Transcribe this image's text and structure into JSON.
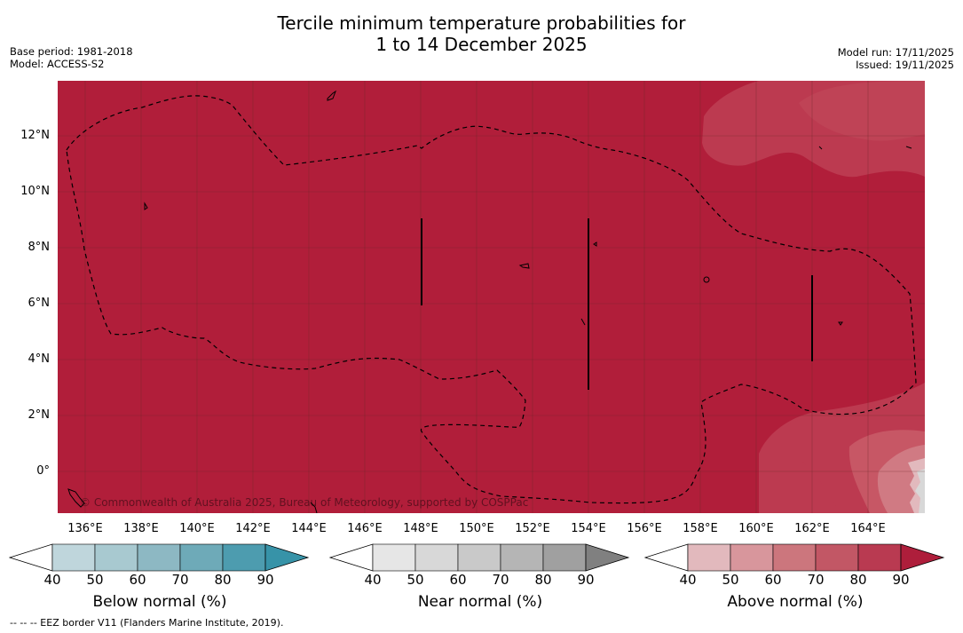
{
  "header": {
    "title_line1": "Tercile minimum temperature probabilities for",
    "title_line2": "1 to 14 December 2025",
    "base_period": "Base period: 1981-2018",
    "model": "Model: ACCESS-S2",
    "model_run": "Model run: 17/11/2025",
    "issued": "Issued: 19/11/2025"
  },
  "map": {
    "lat_range": [
      -1.5,
      14
    ],
    "lon_range": [
      135,
      166
    ],
    "lat_ticks": [
      {
        "value": 12,
        "label": "12°N"
      },
      {
        "value": 10,
        "label": "10°N"
      },
      {
        "value": 8,
        "label": "8°N"
      },
      {
        "value": 6,
        "label": "6°N"
      },
      {
        "value": 4,
        "label": "4°N"
      },
      {
        "value": 2,
        "label": "2°N"
      },
      {
        "value": 0,
        "label": "0°"
      }
    ],
    "lon_ticks": [
      {
        "value": 136,
        "label": "136°E"
      },
      {
        "value": 138,
        "label": "138°E"
      },
      {
        "value": 140,
        "label": "140°E"
      },
      {
        "value": 142,
        "label": "142°E"
      },
      {
        "value": 144,
        "label": "144°E"
      },
      {
        "value": 146,
        "label": "146°E"
      },
      {
        "value": 148,
        "label": "148°E"
      },
      {
        "value": 150,
        "label": "150°E"
      },
      {
        "value": 152,
        "label": "152°E"
      },
      {
        "value": 154,
        "label": "154°E"
      },
      {
        "value": 156,
        "label": "156°E"
      },
      {
        "value": 158,
        "label": "158°E"
      },
      {
        "value": 160,
        "label": "160°E"
      },
      {
        "value": 162,
        "label": "162°E"
      },
      {
        "value": 164,
        "label": "164°E"
      }
    ],
    "copyright": "© Commonwealth of Australia 2025, Bureau of Meteorology, supported by COSPPac",
    "colors": {
      "above_90": "#b11e3a",
      "above_80": "#bc3a50",
      "above_70": "#c75765",
      "above_60": "#d07a83",
      "above_50": "#db9ea4",
      "above_40": "#e2b9bd",
      "near": "#d8d8d8",
      "grid": "#6a2a2a"
    }
  },
  "colorbars": {
    "ticks": [
      "40",
      "50",
      "60",
      "70",
      "80",
      "90"
    ],
    "below": {
      "label": "Below normal (%)",
      "colors": [
        "#bfd6dc",
        "#a8c9d0",
        "#8db8c3",
        "#6eaab8",
        "#4d9caf",
        "#3793a8"
      ]
    },
    "near": {
      "label": "Near normal (%)",
      "colors": [
        "#e6e6e6",
        "#d8d8d8",
        "#c9c9c9",
        "#b5b5b5",
        "#a0a0a0",
        "#808080"
      ]
    },
    "above": {
      "label": "Above normal (%)",
      "colors": [
        "#e2b9bd",
        "#d8969c",
        "#cc767d",
        "#c25765",
        "#b93a51",
        "#ae1e3b"
      ]
    }
  },
  "footer": {
    "eez_note": "--  --  -- EEZ border V11 (Flanders Marine Institute, 2019)."
  }
}
